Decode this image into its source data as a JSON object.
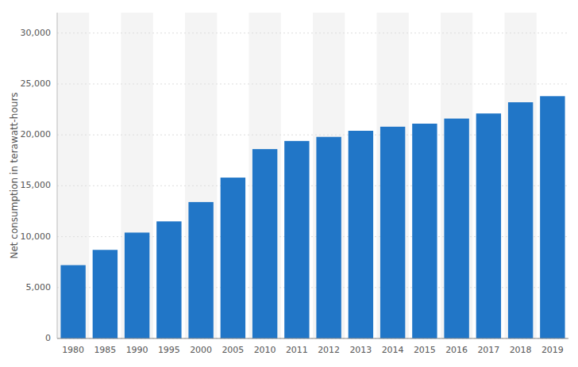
{
  "chart_data": {
    "type": "bar",
    "ylabel": "Net consumption in terawatt-hours",
    "categories": [
      "1980",
      "1985",
      "1990",
      "1995",
      "2000",
      "2005",
      "2010",
      "2011",
      "2012",
      "2013",
      "2014",
      "2015",
      "2016",
      "2017",
      "2018",
      "2019"
    ],
    "values": [
      7200,
      8700,
      10400,
      11500,
      13400,
      15800,
      18600,
      19400,
      19800,
      20400,
      20800,
      21100,
      21600,
      22100,
      23200,
      23800
    ],
    "color": "#2176C7",
    "ylim": [
      0,
      32000
    ],
    "yticks": [
      0,
      {
        "value": 5000,
        "label": "5,000"
      },
      {
        "value": 10000,
        "label": "10,000"
      },
      {
        "value": 15000,
        "label": "15,000"
      },
      {
        "value": 20000,
        "label": "20,000"
      },
      {
        "value": 25000,
        "label": "25,000"
      },
      {
        "value": 30000,
        "label": "30,000"
      }
    ],
    "grid": true
  }
}
